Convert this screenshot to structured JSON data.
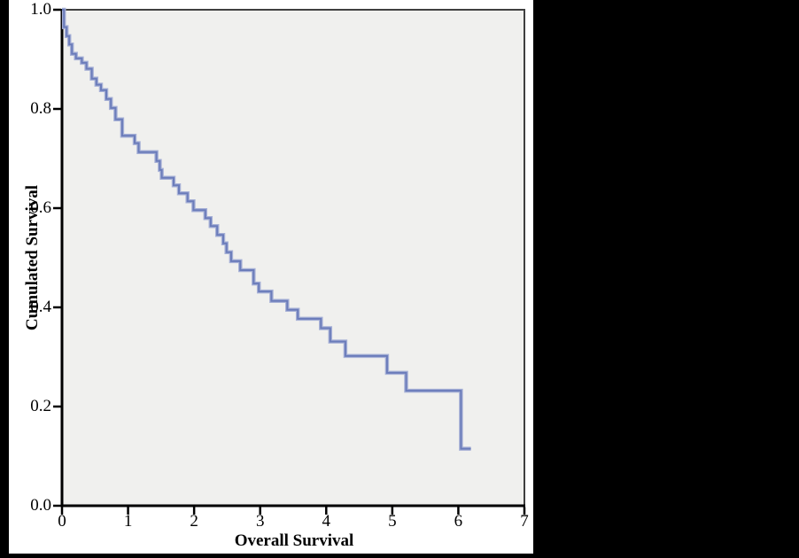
{
  "figure": {
    "background": "#000000",
    "panel_bg": "#ffffff",
    "plot_bg": "#f0f0ee",
    "frame_color": "#3f3f3f",
    "axis_color": "#000000",
    "curve_color": "#6b7cba",
    "curve_halo_color": "#a6b0d6"
  },
  "chart_data": {
    "type": "line",
    "subtype": "kaplan-meier-step-function",
    "title": "",
    "xlabel": "Overall Survival",
    "ylabel": "Cumulated Survival",
    "xlim": [
      0,
      7
    ],
    "ylim": [
      0.0,
      1.0
    ],
    "x_ticks": [
      "0",
      "1",
      "2",
      "3",
      "4",
      "5",
      "6",
      "7"
    ],
    "y_ticks": [
      "0.0",
      "0.2",
      "0.4",
      "0.6",
      "0.8",
      "1.0"
    ],
    "grid": false,
    "legend": null,
    "series_name": "Cumulated Survival",
    "curve_start": [
      0.0,
      1.0
    ],
    "curve_end_time": 6.19,
    "steps": [
      [
        0.03,
        0.965
      ],
      [
        0.07,
        0.947
      ],
      [
        0.11,
        0.93
      ],
      [
        0.15,
        0.911
      ],
      [
        0.21,
        0.902
      ],
      [
        0.3,
        0.893
      ],
      [
        0.37,
        0.881
      ],
      [
        0.45,
        0.861
      ],
      [
        0.52,
        0.849
      ],
      [
        0.59,
        0.838
      ],
      [
        0.67,
        0.82
      ],
      [
        0.74,
        0.802
      ],
      [
        0.81,
        0.779
      ],
      [
        0.91,
        0.746
      ],
      [
        1.1,
        0.731
      ],
      [
        1.16,
        0.713
      ],
      [
        1.43,
        0.695
      ],
      [
        1.48,
        0.677
      ],
      [
        1.51,
        0.661
      ],
      [
        1.69,
        0.646
      ],
      [
        1.77,
        0.63
      ],
      [
        1.9,
        0.614
      ],
      [
        1.99,
        0.596
      ],
      [
        2.17,
        0.58
      ],
      [
        2.25,
        0.564
      ],
      [
        2.35,
        0.546
      ],
      [
        2.44,
        0.529
      ],
      [
        2.49,
        0.511
      ],
      [
        2.56,
        0.493
      ],
      [
        2.7,
        0.475
      ],
      [
        2.9,
        0.448
      ],
      [
        2.98,
        0.432
      ],
      [
        3.17,
        0.413
      ],
      [
        3.41,
        0.395
      ],
      [
        3.57,
        0.377
      ],
      [
        3.92,
        0.358
      ],
      [
        4.06,
        0.331
      ],
      [
        4.29,
        0.302
      ],
      [
        4.92,
        0.268
      ],
      [
        5.21,
        0.232
      ],
      [
        6.04,
        0.115
      ]
    ]
  }
}
